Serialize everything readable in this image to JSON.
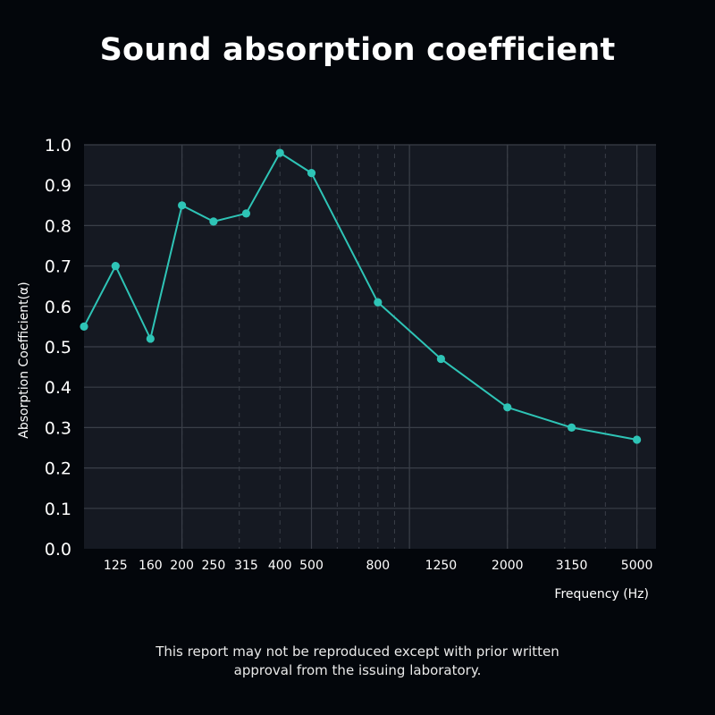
{
  "chart_data": {
    "type": "line",
    "title": "Sound absorption coefficient",
    "xlabel": "Frequency (Hz)",
    "ylabel": "Absorption Coefficient(α)",
    "x_tick_labels": [
      "125",
      "160",
      "200",
      "250",
      "315",
      "400",
      "500",
      "800",
      "1250",
      "2000",
      "3150",
      "5000"
    ],
    "y_tick_labels": [
      "0.0",
      "0.1",
      "0.2",
      "0.3",
      "0.4",
      "0.5",
      "0.6",
      "0.7",
      "0.8",
      "0.9",
      "1.0"
    ],
    "ylim": [
      0.0,
      1.0
    ],
    "grid": true,
    "series": [
      {
        "x": [
          100,
          125,
          160,
          200,
          250,
          315,
          400,
          500,
          800,
          1250,
          2000,
          3150,
          5000
        ],
        "values": [
          0.55,
          0.7,
          0.52,
          0.85,
          0.81,
          0.83,
          0.98,
          0.93,
          0.61,
          0.47,
          0.35,
          0.3,
          0.27
        ]
      }
    ],
    "colors": {
      "line": "#2ec4b6",
      "plot_background": "#151922",
      "grid": "#3a3f48"
    }
  },
  "footer": {
    "line1": "This report may not be reproduced except with prior written",
    "line2": "approval from the issuing laboratory."
  }
}
